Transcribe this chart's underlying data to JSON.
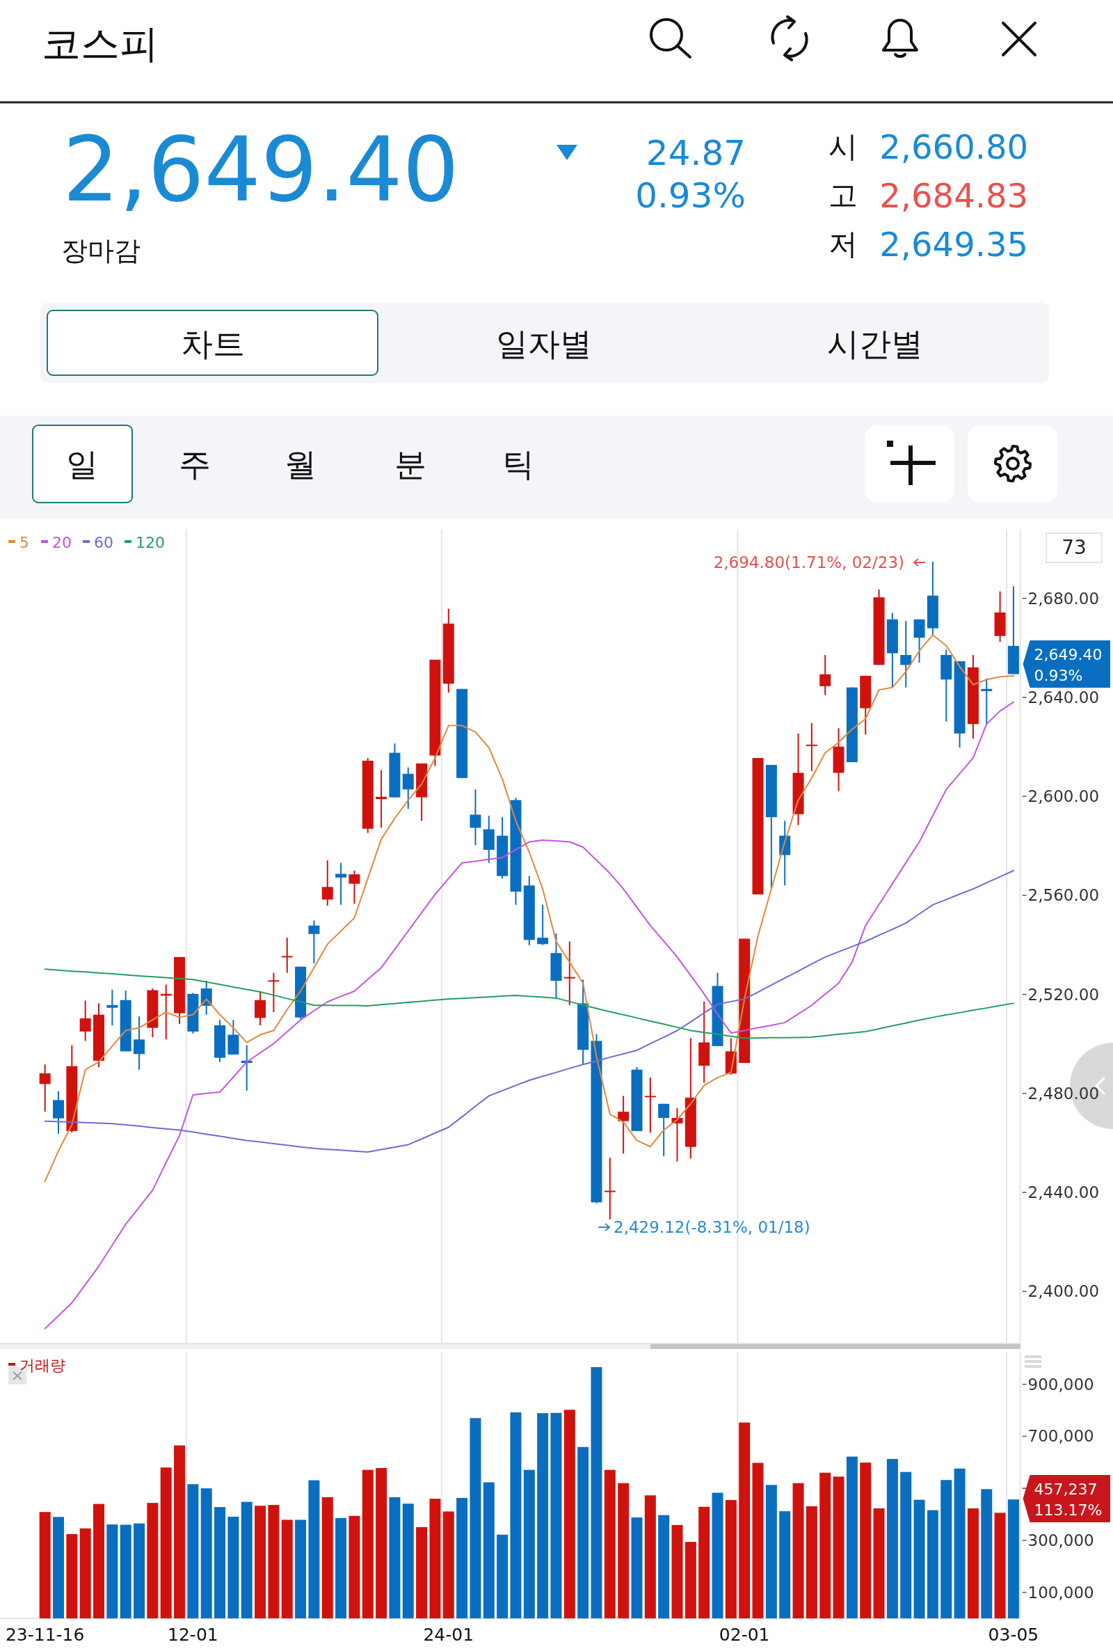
{
  "chart_data": [
    {
      "type": "candlestick",
      "title": "코스피",
      "categories": [
        null,
        null,
        null,
        null,
        null,
        null,
        null,
        null,
        null,
        null,
        null,
        null,
        null,
        null,
        null,
        null,
        null,
        null,
        null,
        null,
        null,
        null,
        null,
        null,
        null,
        null,
        null,
        null,
        null,
        null,
        null,
        null,
        null,
        null,
        null,
        null,
        null,
        null,
        null,
        null,
        null,
        null,
        null,
        null,
        null,
        null,
        null,
        null,
        null,
        null,
        null,
        null,
        null,
        null,
        null,
        null,
        null,
        null,
        null,
        null,
        null,
        null,
        null,
        null,
        null,
        null,
        null,
        null,
        null,
        null,
        null,
        null,
        null
      ],
      "ohlc": [
        [
          2483.8,
          2491.7,
          2472.6,
          2488.1
        ],
        [
          2477.3,
          2480.9,
          2463.7,
          2469.9
        ],
        [
          2464.8,
          2499.5,
          2464.2,
          2491.0
        ],
        [
          2505.0,
          2517.5,
          2501.2,
          2510.3
        ],
        [
          2493.2,
          2516.4,
          2490.6,
          2511.8
        ],
        [
          2515.7,
          2521.9,
          2507.5,
          2514.6
        ],
        [
          2517.7,
          2521.5,
          2497.0,
          2497.0
        ],
        [
          2501.8,
          2511.1,
          2489.6,
          2495.9
        ],
        [
          2506.5,
          2522.4,
          2502.7,
          2521.7
        ],
        [
          2519.5,
          2524.0,
          2501.8,
          2520.2
        ],
        [
          2512.4,
          2535.1,
          2508.0,
          2535.1
        ],
        [
          2520.2,
          2520.6,
          2504.2,
          2505.0
        ],
        [
          2522.4,
          2525.5,
          2511.8,
          2515.4
        ],
        [
          2507.5,
          2509.7,
          2492.7,
          2494.4
        ],
        [
          2503.7,
          2509.7,
          2495.7,
          2495.7
        ],
        [
          2493.2,
          2499.5,
          2481.1,
          2492.3
        ],
        [
          2510.5,
          2521.3,
          2507.5,
          2517.7
        ],
        [
          2525.3,
          2528.7,
          2512.8,
          2525.7
        ],
        [
          2535.1,
          2542.9,
          2528.7,
          2535.5
        ],
        [
          2531.2,
          2531.2,
          2510.1,
          2510.7
        ],
        [
          2547.8,
          2549.9,
          2532.5,
          2544.4
        ],
        [
          2558.3,
          2574.2,
          2555.8,
          2563.4
        ],
        [
          2568.7,
          2573.1,
          2556.2,
          2567.2
        ],
        [
          2564.7,
          2570.0,
          2556.6,
          2568.5
        ],
        [
          2586.9,
          2615.5,
          2585.2,
          2614.4
        ],
        [
          2598.9,
          2610.6,
          2587.3,
          2599.8
        ],
        [
          2617.6,
          2621.4,
          2599.6,
          2599.6
        ],
        [
          2609.1,
          2611.7,
          2594.9,
          2602.8
        ],
        [
          2599.6,
          2613.3,
          2590.1,
          2613.3
        ],
        [
          2616.5,
          2655.2,
          2612.3,
          2655.2
        ],
        [
          2645.5,
          2675.8,
          2641.9,
          2669.8
        ],
        [
          2643.4,
          2643.4,
          2607.4,
          2607.4
        ],
        [
          2592.6,
          2602.8,
          2580.3,
          2587.3
        ],
        [
          2586.7,
          2592.2,
          2573.1,
          2578.4
        ],
        [
          2584.1,
          2591.6,
          2566.8,
          2567.8
        ],
        [
          2598.5,
          2599.4,
          2556.2,
          2561.5
        ],
        [
          2564.0,
          2567.8,
          2539.9,
          2542.0
        ],
        [
          2542.9,
          2556.2,
          2540.0,
          2540.3
        ],
        [
          2536.7,
          2544.6,
          2518.1,
          2525.5
        ],
        [
          2526.6,
          2541.4,
          2515.6,
          2527.0
        ],
        [
          2516.4,
          2526.0,
          2491.7,
          2497.6
        ],
        [
          2501.2,
          2504.0,
          2435.6,
          2436.0
        ],
        [
          2440.3,
          2454.0,
          2429.12,
          2440.7
        ],
        [
          2468.8,
          2479.0,
          2455.7,
          2472.6
        ],
        [
          2489.6,
          2490.6,
          2464.8,
          2464.8
        ],
        [
          2478.5,
          2486.4,
          2464.2,
          2479.0
        ],
        [
          2475.8,
          2475.8,
          2454.6,
          2470.1
        ],
        [
          2467.9,
          2474.1,
          2452.5,
          2470.1
        ],
        [
          2458.4,
          2502.3,
          2453.6,
          2478.3
        ],
        [
          2491.2,
          2517.1,
          2484.3,
          2500.6
        ],
        [
          2523.4,
          2528.7,
          2499.1,
          2499.1
        ],
        [
          2488.0,
          2502.3,
          2487.6,
          2497.0
        ],
        [
          2492.3,
          2542.5,
          2492.3,
          2542.5
        ],
        [
          2560.4,
          2615.5,
          2560.4,
          2615.5
        ],
        [
          2612.7,
          2612.7,
          2562.6,
          2591.6
        ],
        [
          2584.1,
          2590.1,
          2564.0,
          2576.3
        ],
        [
          2592.8,
          2625.4,
          2588.4,
          2609.5
        ],
        [
          2620.5,
          2629.6,
          2610.2,
          2620.9
        ],
        [
          2644.5,
          2657.1,
          2640.9,
          2649.3
        ],
        [
          2609.5,
          2627.5,
          2602.1,
          2620.1
        ],
        [
          2644.0,
          2644.0,
          2613.8,
          2613.8
        ],
        [
          2635.6,
          2648.7,
          2625.0,
          2648.7
        ],
        [
          2653.1,
          2683.6,
          2653.1,
          2680.4
        ],
        [
          2671.5,
          2674.1,
          2644.0,
          2657.8
        ],
        [
          2657.1,
          2670.9,
          2644.0,
          2653.1
        ],
        [
          2671.5,
          2671.5,
          2654.0,
          2664.1
        ],
        [
          2681.1,
          2694.8,
          2665.2,
          2667.9
        ],
        [
          2657.1,
          2659.3,
          2630.3,
          2647.2
        ],
        [
          2654.6,
          2654.6,
          2619.7,
          2625.4
        ],
        [
          2629.2,
          2657.1,
          2623.3,
          2652.1
        ],
        [
          2643.4,
          2647.6,
          2629.2,
          2642.5
        ],
        [
          2664.8,
          2682.8,
          2662.4,
          2674.3
        ],
        [
          2660.8,
          2684.83,
          2649.35,
          2649.4
        ]
      ],
      "colors": [
        "#d0120e",
        "#0a6ec0",
        "#d0120e",
        "#d0120e",
        "#d0120e",
        "#0a6ec0",
        "#0a6ec0",
        "#0a6ec0",
        "#d0120e",
        "#d0120e",
        "#d0120e",
        "#0a6ec0",
        "#0a6ec0",
        "#0a6ec0",
        "#0a6ec0",
        "#0a6ec0",
        "#d0120e",
        "#d0120e",
        "#d0120e",
        "#0a6ec0",
        "#0a6ec0",
        "#d0120e",
        "#0a6ec0",
        "#d0120e",
        "#d0120e",
        "#d0120e",
        "#0a6ec0",
        "#0a6ec0",
        "#d0120e",
        "#d0120e",
        "#d0120e",
        "#0a6ec0",
        "#0a6ec0",
        "#0a6ec0",
        "#0a6ec0",
        "#0a6ec0",
        "#0a6ec0",
        "#0a6ec0",
        "#0a6ec0",
        "#d0120e",
        "#0a6ec0",
        "#0a6ec0",
        "#d0120e",
        "#d0120e",
        "#0a6ec0",
        "#d0120e",
        "#0a6ec0",
        "#d0120e",
        "#d0120e",
        "#d0120e",
        "#0a6ec0",
        "#d0120e",
        "#d0120e",
        "#d0120e",
        "#0a6ec0",
        "#0a6ec0",
        "#d0120e",
        "#d0120e",
        "#d0120e",
        "#d0120e",
        "#0a6ec0",
        "#d0120e",
        "#d0120e",
        "#0a6ec0",
        "#0a6ec0",
        "#0a6ec0",
        "#0a6ec0",
        "#0a6ec0",
        "#0a6ec0",
        "#d0120e",
        "#0a6ec0",
        "#d0120e",
        "#0a6ec0"
      ],
      "series": [
        {
          "name": "5",
          "type": "line",
          "color": "#e08a3c",
          "values": [
            2444.5,
            2456.8,
            2467.3,
            2489.6,
            2492.7,
            2499.1,
            2505.4,
            2506.5,
            2509.7,
            2512.8,
            2510.7,
            2511.8,
            2518.1,
            2511.8,
            2506.5,
            2500.6,
            2503.7,
            2505.4,
            2513.9,
            2521.3,
            2530.8,
            2540.3,
            2545.6,
            2550.9,
            2566.8,
            2582.7,
            2591.1,
            2598.5,
            2604.9,
            2615.5,
            2628.6,
            2628.6,
            2626.0,
            2619.7,
            2607.0,
            2590.1,
            2577.4,
            2562.6,
            2541.4,
            2533.0,
            2524.5,
            2494.9,
            2471.6,
            2468.4,
            2461.0,
            2458.5,
            2465.2,
            2469.4,
            2475.8,
            2483.2,
            2486.4,
            2488.5,
            2518.1,
            2543.5,
            2562.6,
            2581.6,
            2598.5,
            2607.4,
            2617.6,
            2621.8,
            2627.1,
            2631.3,
            2643.0,
            2644.0,
            2650.4,
            2658.8,
            2665.2,
            2660.9,
            2652.5,
            2645.1,
            2647.2,
            2648.3,
            2648.7
          ]
        },
        {
          "name": "20",
          "type": "line",
          "color": "#c455e0",
          "values": [
            2385.0,
            2390.2,
            2395.4,
            2402.8,
            2410.2,
            2418.7,
            2427.1,
            2434.0,
            2440.9,
            2452.0,
            2463.0,
            2479.4,
            2480.0,
            2480.5,
            2486.6,
            2492.7,
            2496.4,
            2500.1,
            2504.9,
            2509.7,
            2513.4,
            2517.0,
            2519.2,
            2521.3,
            2526.1,
            2530.8,
            2538.2,
            2545.6,
            2553.0,
            2560.4,
            2566.8,
            2573.1,
            2573.8,
            2574.6,
            2575.3,
            2578.5,
            2581.6,
            2582.3,
            2582.0,
            2581.6,
            2579.5,
            2574.2,
            2568.9,
            2562.6,
            2555.2,
            2547.8,
            2541.5,
            2535.1,
            2527.7,
            2520.2,
            2512.0,
            2504.4,
            2505.4,
            2506.5,
            2507.5,
            2508.6,
            2512.1,
            2515.6,
            2520.1,
            2524.5,
            2533.0,
            2547.8,
            2556.3,
            2564.7,
            2573.2,
            2581.6,
            2592.2,
            2602.8,
            2609.2,
            2615.5,
            2629.2,
            2634.5,
            2638.1
          ]
        },
        {
          "name": "60",
          "type": "line",
          "color": "#6c6cd4",
          "values": [
            2468.8,
            2468.6,
            2468.4,
            2468.2,
            2468.0,
            2467.8,
            2467.3,
            2466.8,
            2466.2,
            2465.7,
            2465.2,
            2464.4,
            2463.5,
            2462.7,
            2461.8,
            2461.0,
            2460.4,
            2459.7,
            2459.1,
            2458.4,
            2457.8,
            2457.4,
            2457.1,
            2456.7,
            2456.3,
            2457.3,
            2458.3,
            2459.3,
            2461.6,
            2464.0,
            2466.3,
            2470.5,
            2474.8,
            2479.0,
            2481.1,
            2483.2,
            2485.3,
            2486.9,
            2488.5,
            2490.1,
            2491.7,
            2493.1,
            2494.6,
            2496.0,
            2497.4,
            2500.1,
            2502.7,
            2505.4,
            2508.9,
            2512.5,
            2516.0,
            2517.1,
            2518.1,
            2520.9,
            2523.8,
            2526.6,
            2529.4,
            2532.3,
            2535.1,
            2537.2,
            2539.3,
            2541.4,
            2543.9,
            2546.3,
            2548.8,
            2552.5,
            2556.2,
            2558.3,
            2560.5,
            2562.6,
            2565.1,
            2567.5,
            2570.0
          ]
        },
        {
          "name": "120",
          "type": "line",
          "color": "#22a060",
          "values": [
            2530.2,
            2529.8,
            2529.4,
            2529.1,
            2528.7,
            2528.3,
            2527.9,
            2527.5,
            2527.1,
            2526.8,
            2526.4,
            2526.0,
            2525.0,
            2524.0,
            2523.0,
            2522.0,
            2521.0,
            2519.7,
            2518.3,
            2517.0,
            2515.6,
            2515.6,
            2515.5,
            2515.5,
            2515.4,
            2515.9,
            2516.3,
            2516.8,
            2517.2,
            2517.7,
            2518.1,
            2518.4,
            2518.7,
            2519.0,
            2519.3,
            2519.6,
            2519.2,
            2518.9,
            2518.5,
            2517.1,
            2515.7,
            2514.3,
            2513.0,
            2511.8,
            2510.5,
            2509.2,
            2508.0,
            2506.7,
            2505.4,
            2504.6,
            2503.9,
            2503.1,
            2502.3,
            2502.4,
            2502.5,
            2502.5,
            2502.6,
            2502.7,
            2503.3,
            2503.9,
            2504.4,
            2505.0,
            2506.1,
            2507.3,
            2508.4,
            2509.6,
            2510.7,
            2511.7,
            2512.6,
            2513.6,
            2514.5,
            2515.5,
            2516.4
          ]
        }
      ],
      "ylim": [
        2379,
        2708
      ],
      "yticks": [
        {
          "value": 2400,
          "label": "2,400.00"
        },
        {
          "value": 2440,
          "label": "2,440.00"
        },
        {
          "value": 2480,
          "label": "2,480.00"
        },
        {
          "value": 2520,
          "label": "2,520.00"
        },
        {
          "value": 2560,
          "label": "2,560.00"
        },
        {
          "value": 2600,
          "label": "2,600.00"
        },
        {
          "value": 2640,
          "label": "2,640.00"
        },
        {
          "value": 2680,
          "label": "2,680.00"
        }
      ],
      "tick_labels": "y",
      "grid": "x",
      "legend": "top left",
      "annotations": [
        "2,649.40",
        "장마감",
        "24.87",
        "0.93%",
        "시",
        "2,660.80",
        "고",
        "2,684.83",
        "저",
        "2,649.35",
        "차트",
        "일자별",
        "시간별",
        "일",
        "주",
        "월",
        "분",
        "틱",
        "73",
        "2,694.80(1.71%, 02/23)",
        "2,429.12(-8.31%, 01/18)",
        "2,649.40 0.93%"
      ]
    },
    {
      "type": "bar",
      "categories": [
        "23-11-16",
        null,
        null,
        null,
        null,
        null,
        null,
        null,
        null,
        null,
        null,
        "12-01",
        null,
        null,
        null,
        null,
        null,
        null,
        null,
        null,
        null,
        null,
        null,
        null,
        null,
        null,
        null,
        null,
        null,
        null,
        "24-01",
        null,
        null,
        null,
        null,
        null,
        null,
        null,
        null,
        null,
        null,
        null,
        null,
        null,
        null,
        null,
        null,
        null,
        null,
        null,
        null,
        null,
        "02-01",
        null,
        null,
        null,
        null,
        null,
        null,
        null,
        null,
        null,
        null,
        null,
        null,
        null,
        null,
        null,
        null,
        null,
        null,
        null,
        "03-05"
      ],
      "series": [
        {
          "name": "거래량",
          "color": "#c0141a",
          "colors": [
            "#d0120e",
            "#0a6ec0",
            "#d0120e",
            "#d0120e",
            "#d0120e",
            "#0a6ec0",
            "#0a6ec0",
            "#0a6ec0",
            "#d0120e",
            "#d0120e",
            "#d0120e",
            "#0a6ec0",
            "#0a6ec0",
            "#0a6ec0",
            "#0a6ec0",
            "#0a6ec0",
            "#d0120e",
            "#d0120e",
            "#d0120e",
            "#0a6ec0",
            "#0a6ec0",
            "#d0120e",
            "#0a6ec0",
            "#d0120e",
            "#d0120e",
            "#d0120e",
            "#0a6ec0",
            "#0a6ec0",
            "#d0120e",
            "#d0120e",
            "#d0120e",
            "#0a6ec0",
            "#0a6ec0",
            "#0a6ec0",
            "#0a6ec0",
            "#0a6ec0",
            "#0a6ec0",
            "#0a6ec0",
            "#0a6ec0",
            "#d0120e",
            "#0a6ec0",
            "#0a6ec0",
            "#d0120e",
            "#d0120e",
            "#0a6ec0",
            "#d0120e",
            "#0a6ec0",
            "#d0120e",
            "#d0120e",
            "#d0120e",
            "#0a6ec0",
            "#d0120e",
            "#d0120e",
            "#d0120e",
            "#0a6ec0",
            "#0a6ec0",
            "#d0120e",
            "#d0120e",
            "#d0120e",
            "#d0120e",
            "#0a6ec0",
            "#d0120e",
            "#d0120e",
            "#0a6ec0",
            "#0a6ec0",
            "#0a6ec0",
            "#0a6ec0",
            "#0a6ec0",
            "#0a6ec0",
            "#d0120e",
            "#0a6ec0",
            "#d0120e",
            "#0a6ec0"
          ],
          "values": [
            409000,
            390000,
            324000,
            346000,
            440000,
            361000,
            360000,
            365000,
            444000,
            580000,
            665000,
            516000,
            500000,
            428000,
            391000,
            448000,
            433000,
            436000,
            379000,
            379000,
            531000,
            466000,
            386000,
            394000,
            571000,
            578000,
            466000,
            441000,
            351000,
            460000,
            411000,
            463000,
            770000,
            523000,
            322000,
            792000,
            571000,
            789000,
            790000,
            802000,
            659000,
            966000,
            571000,
            520000,
            388000,
            473000,
            397000,
            359000,
            294000,
            429000,
            483000,
            455000,
            753000,
            598000,
            513000,
            412000,
            520000,
            431000,
            560000,
            545000,
            622000,
            599000,
            423000,
            613000,
            563000,
            456000,
            416000,
            532000,
            576000,
            423000,
            497000,
            406000,
            457237
          ]
        }
      ],
      "ylim": [
        0,
        1025000
      ],
      "yticks": [
        {
          "value": 100000,
          "label": "100,000"
        },
        {
          "value": 300000,
          "label": "300,000"
        },
        {
          "value": 500000,
          "label": null
        },
        {
          "value": 700000,
          "label": "700,000"
        },
        {
          "value": 900000,
          "label": "900,000"
        }
      ],
      "grid": "x",
      "legend": "top left",
      "annotations": [
        "457,237 113.17%"
      ]
    }
  ]
}
